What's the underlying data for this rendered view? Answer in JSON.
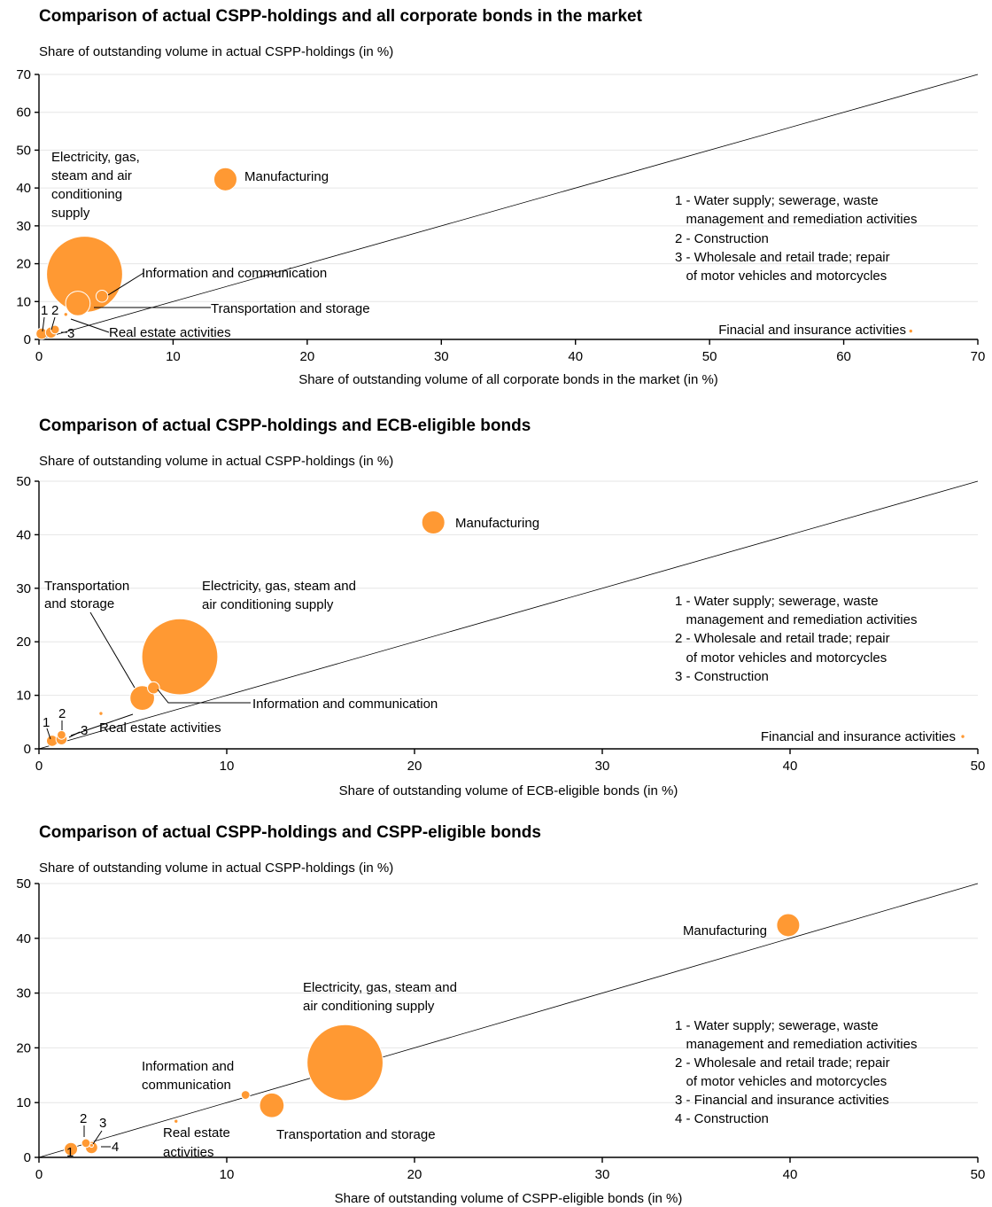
{
  "colors": {
    "bubble": "#ff9933",
    "diagonal": "#000000",
    "grid": "#e6e6e6"
  },
  "chart_data": [
    {
      "type": "scatter",
      "title": "Comparison of actual CSPP-holdings and all corporate bonds in the market",
      "ylabel": "Share of outstanding volume in actual CSPP-holdings (in %)",
      "xlabel": "Share of outstanding volume of all corporate bonds in the market (in %)",
      "xlim": [
        0,
        70
      ],
      "ylim": [
        0,
        70
      ],
      "xticks": [
        0,
        10,
        20,
        30,
        40,
        50,
        60,
        70
      ],
      "yticks": [
        0,
        10,
        20,
        30,
        40,
        50,
        60,
        70
      ],
      "diagonal": true,
      "legend": [
        "1 - Water supply; sewerage, waste",
        "   management and remediation activities",
        "2 - Construction",
        "3 - Wholesale and retail trade; repair",
        "   of motor vehicles and motorcycles"
      ],
      "points": [
        {
          "id": "m",
          "label": "Manufacturing",
          "x": 13.9,
          "y": 42.3,
          "size": 42.3
        },
        {
          "id": "e",
          "label": "Electricity, gas, steam and air conditioning supply",
          "x": 3.4,
          "y": 17.2,
          "size": 460
        },
        {
          "id": "i",
          "label": "Information and communication",
          "x": 4.7,
          "y": 11.4,
          "size": 11.4
        },
        {
          "id": "t",
          "label": "Transportation and storage",
          "x": 2.9,
          "y": 9.5,
          "size": 48
        },
        {
          "id": "r",
          "label": "Real estate activities",
          "x": 2.0,
          "y": 6.6,
          "size": 1.2
        },
        {
          "id": "w",
          "label": "1",
          "x": 0.2,
          "y": 1.5,
          "size": 10
        },
        {
          "id": "c",
          "label": "2",
          "x": 1.2,
          "y": 2.6,
          "size": 6
        },
        {
          "id": "s",
          "label": "3",
          "x": 0.9,
          "y": 1.8,
          "size": 10
        },
        {
          "id": "f",
          "label": "Finacial and insurance activities",
          "x": 65.0,
          "y": 2.2,
          "size": 0.6
        }
      ]
    },
    {
      "type": "scatter",
      "title": "Comparison of actual CSPP-holdings and ECB-eligible bonds",
      "ylabel": "Share of outstanding volume in actual CSPP-holdings (in %)",
      "xlabel": "Share of outstanding volume of ECB-eligible bonds (in %)",
      "xlim": [
        0,
        50
      ],
      "ylim": [
        0,
        50
      ],
      "xticks": [
        0,
        10,
        20,
        30,
        40,
        50
      ],
      "yticks": [
        0,
        10,
        20,
        30,
        40,
        50
      ],
      "diagonal": true,
      "legend": [
        "1 - Water supply; sewerage, waste",
        "   management and remediation activities",
        "2 - Wholesale and retail trade; repair",
        "   of motor vehicles and motorcycles",
        "3 - Construction"
      ],
      "points": [
        {
          "id": "m",
          "label": "Manufacturing",
          "x": 21.0,
          "y": 42.3,
          "size": 42.3
        },
        {
          "id": "e",
          "label": "Electricity, gas, steam and air conditioning supply",
          "x": 7.5,
          "y": 17.2,
          "size": 460
        },
        {
          "id": "t",
          "label": "Transportation and storage",
          "x": 5.5,
          "y": 9.5,
          "size": 48
        },
        {
          "id": "i",
          "label": "Information and communication",
          "x": 6.1,
          "y": 11.4,
          "size": 11.4
        },
        {
          "id": "r",
          "label": "Real estate activities",
          "x": 3.3,
          "y": 6.6,
          "size": 1.2
        },
        {
          "id": "w",
          "label": "1",
          "x": 0.7,
          "y": 1.5,
          "size": 10
        },
        {
          "id": "s",
          "label": "2",
          "x": 1.2,
          "y": 2.6,
          "size": 6
        },
        {
          "id": "c",
          "label": "3",
          "x": 1.2,
          "y": 1.8,
          "size": 10
        },
        {
          "id": "f",
          "label": "Financial and insurance activities",
          "x": 49.2,
          "y": 2.3,
          "size": 0.6
        }
      ]
    },
    {
      "type": "scatter",
      "title": "Comparison of actual CSPP-holdings and CSPP-eligible bonds",
      "ylabel": "Share of outstanding volume in actual CSPP-holdings (in %)",
      "xlabel": "Share of outstanding volume of CSPP-eligible bonds (in %)",
      "xlim": [
        0,
        50
      ],
      "ylim": [
        0,
        50
      ],
      "xticks": [
        0,
        10,
        20,
        30,
        40,
        50
      ],
      "yticks": [
        0,
        10,
        20,
        30,
        40,
        50
      ],
      "diagonal": true,
      "legend": [
        "1 - Water supply; sewerage, waste",
        "   management and remediation activities",
        "2 - Wholesale and retail trade; repair",
        "   of motor vehicles and motorcycles",
        "3 - Financial and insurance activities",
        "4 - Construction"
      ],
      "points": [
        {
          "id": "m",
          "label": "Manufacturing",
          "x": 39.9,
          "y": 42.4,
          "size": 42.3
        },
        {
          "id": "e",
          "label": "Electricity, gas, steam and air conditioning supply",
          "x": 16.3,
          "y": 17.3,
          "size": 460
        },
        {
          "id": "i",
          "label": "Information and communication",
          "x": 11.0,
          "y": 11.4,
          "size": 6
        },
        {
          "id": "t",
          "label": "Transportation and storage",
          "x": 12.4,
          "y": 9.5,
          "size": 48
        },
        {
          "id": "r",
          "label": "Real estate activities",
          "x": 7.3,
          "y": 6.6,
          "size": 0.9
        },
        {
          "id": "w",
          "label": "1",
          "x": 1.7,
          "y": 1.5,
          "size": 14
        },
        {
          "id": "s",
          "label": "2",
          "x": 2.5,
          "y": 2.6,
          "size": 6
        },
        {
          "id": "f",
          "label": "3",
          "x": 2.8,
          "y": 2.2,
          "size": 0.6
        },
        {
          "id": "c",
          "label": "4",
          "x": 2.8,
          "y": 1.8,
          "size": 12
        }
      ]
    }
  ]
}
